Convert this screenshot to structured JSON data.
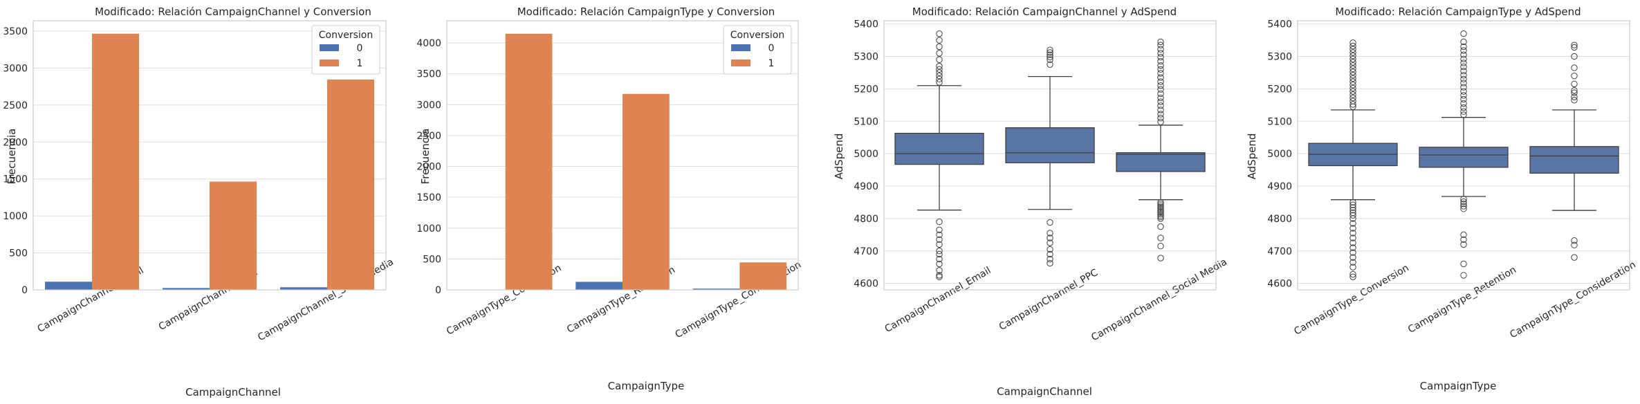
{
  "chart_data": [
    {
      "type": "bar",
      "title": "Modificado: Relación CampaignChannel y Conversion",
      "xlabel": "CampaignChannel",
      "ylabel": "Frecuencia",
      "categories": [
        "CampaignChannel_Email",
        "CampaignChannel_PPC",
        "CampaignChannel_Social Media"
      ],
      "series": [
        {
          "name": "0",
          "values": [
            110,
            25,
            35
          ],
          "color": "#4c72b0"
        },
        {
          "name": "1",
          "values": [
            3465,
            1465,
            2845
          ],
          "color": "#dd8452"
        }
      ],
      "ylim": [
        0,
        3640
      ],
      "yticks": [
        0,
        500,
        1000,
        1500,
        2000,
        2500,
        3000,
        3500
      ],
      "legend_title": "Conversion",
      "legend_position": "top-right",
      "grid": true
    },
    {
      "type": "bar",
      "title": "Modificado: Relación CampaignType y Conversion",
      "xlabel": "CampaignType",
      "ylabel": "Frecuencia",
      "categories": [
        "CampaignType_Conversion",
        "CampaignType_Retention",
        "CampaignType_Consideration"
      ],
      "series": [
        {
          "name": "0",
          "values": [
            5,
            130,
            20
          ],
          "color": "#4c72b0"
        },
        {
          "name": "1",
          "values": [
            4150,
            3175,
            445
          ],
          "color": "#dd8452"
        }
      ],
      "ylim": [
        0,
        4360
      ],
      "yticks": [
        0,
        500,
        1000,
        1500,
        2000,
        2500,
        3000,
        3500,
        4000
      ],
      "legend_title": "Conversion",
      "legend_position": "top-right",
      "grid": true
    },
    {
      "type": "box",
      "title": "Modificado: Relación CampaignChannel y AdSpend",
      "xlabel": "CampaignChannel",
      "ylabel": "AdSpend",
      "categories": [
        "CampaignChannel_Email",
        "CampaignChannel_PPC",
        "CampaignChannel_Social Media"
      ],
      "color": "#5975a4",
      "boxes": [
        {
          "q1": 4967,
          "median": 5000,
          "q3": 5063,
          "whisker_low": 4826,
          "whisker_high": 5210,
          "outliers": [
            5370,
            5350,
            5330,
            5310,
            5290,
            5270,
            5260,
            5250,
            5240,
            5230,
            5220,
            4790,
            4765,
            4750,
            4735,
            4720,
            4700,
            4690,
            4675,
            4660,
            4640,
            4625,
            4620
          ]
        },
        {
          "q1": 4972,
          "median": 5003,
          "q3": 5080,
          "whisker_low": 4828,
          "whisker_high": 5238,
          "outliers": [
            5320,
            5312,
            5305,
            5298,
            5290,
            5275,
            4788,
            4755,
            4740,
            4725,
            4705,
            4690,
            4675,
            4662
          ]
        },
        {
          "q1": 4945,
          "median": 4998,
          "q3": 5003,
          "whisker_low": 4858,
          "whisker_high": 5088,
          "outliers": [
            5345,
            5335,
            5322,
            5310,
            5298,
            5285,
            5272,
            5260,
            5248,
            5235,
            5222,
            5210,
            5198,
            5185,
            5172,
            5160,
            5148,
            5135,
            5122,
            5110,
            5098,
            4850,
            4845,
            4840,
            4835,
            4830,
            4825,
            4820,
            4815,
            4810,
            4805,
            4800,
            4775,
            4740,
            4715,
            4678
          ]
        }
      ],
      "ylim": [
        4580,
        5410
      ],
      "yticks": [
        4600,
        4700,
        4800,
        4900,
        5000,
        5100,
        5200,
        5300,
        5400
      ],
      "grid": true
    },
    {
      "type": "box",
      "title": "Modificado: Relación CampaignType y AdSpend",
      "xlabel": "CampaignType",
      "ylabel": "AdSpend",
      "categories": [
        "CampaignType_Conversion",
        "CampaignType_Retention",
        "CampaignType_Consideration"
      ],
      "color": "#5975a4",
      "boxes": [
        {
          "q1": 4963,
          "median": 4998,
          "q3": 5032,
          "whisker_low": 4858,
          "whisker_high": 5135,
          "outliers": [
            5342,
            5332,
            5322,
            5312,
            5302,
            5292,
            5282,
            5272,
            5262,
            5252,
            5242,
            5232,
            5222,
            5212,
            5202,
            5192,
            5182,
            5172,
            5162,
            5152,
            5145,
            4850,
            4842,
            4834,
            4826,
            4818,
            4810,
            4800,
            4785,
            4770,
            4755,
            4740,
            4725,
            4710,
            4695,
            4680,
            4665,
            4650,
            4628,
            4620
          ]
        },
        {
          "q1": 4958,
          "median": 4996,
          "q3": 5020,
          "whisker_low": 4868,
          "whisker_high": 5112,
          "outliers": [
            5370,
            5345,
            5330,
            5318,
            5305,
            5292,
            5280,
            5268,
            5255,
            5242,
            5230,
            5218,
            5205,
            5192,
            5180,
            5168,
            5155,
            5142,
            5130,
            5120,
            4860,
            4852,
            4845,
            4838,
            4830,
            4750,
            4735,
            4720,
            4660,
            4625
          ]
        },
        {
          "q1": 4940,
          "median": 4993,
          "q3": 5022,
          "whisker_low": 4825,
          "whisker_high": 5135,
          "outliers": [
            5335,
            5328,
            5300,
            5265,
            5240,
            5215,
            5195,
            5188,
            5175,
            5165,
            4732,
            4718,
            4680
          ]
        }
      ],
      "ylim": [
        4580,
        5410
      ],
      "yticks": [
        4600,
        4700,
        4800,
        4900,
        5000,
        5100,
        5200,
        5300,
        5400
      ],
      "grid": true
    }
  ]
}
